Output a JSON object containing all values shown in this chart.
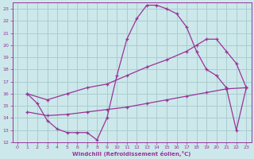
{
  "background_color": "#cce8ea",
  "line_color": "#993399",
  "grid_color": "#aaccd0",
  "xlabel": "Windchill (Refroidissement éolien,°C)",
  "xlim": [
    -0.5,
    23.5
  ],
  "ylim": [
    12,
    23.5
  ],
  "yticks": [
    12,
    13,
    14,
    15,
    16,
    17,
    18,
    19,
    20,
    21,
    22,
    23
  ],
  "xticks": [
    0,
    1,
    2,
    3,
    4,
    5,
    6,
    7,
    8,
    9,
    10,
    11,
    12,
    13,
    14,
    15,
    16,
    17,
    18,
    19,
    20,
    21,
    22,
    23
  ],
  "curve1_x": [
    1,
    2,
    3,
    4,
    5,
    6,
    7,
    8,
    9,
    10,
    11,
    12,
    13,
    14,
    15,
    16,
    17,
    18,
    19,
    20,
    21,
    22,
    23
  ],
  "curve1_y": [
    16.0,
    15.2,
    13.8,
    13.1,
    12.8,
    12.8,
    12.8,
    12.2,
    14.0,
    17.5,
    20.5,
    22.2,
    23.3,
    23.3,
    23.0,
    22.6,
    21.5,
    19.5,
    18.0,
    17.5,
    16.5,
    13.0,
    16.5
  ],
  "curve2_x": [
    1,
    3,
    5,
    7,
    9,
    11,
    13,
    15,
    17,
    18,
    19,
    20,
    21,
    22,
    23
  ],
  "curve2_y": [
    16.0,
    15.5,
    16.0,
    16.5,
    16.8,
    17.5,
    18.2,
    18.8,
    19.5,
    20.0,
    20.5,
    20.5,
    19.5,
    18.5,
    16.5
  ],
  "curve3_x": [
    1,
    3,
    5,
    7,
    9,
    11,
    13,
    15,
    17,
    19,
    21,
    23
  ],
  "curve3_y": [
    14.5,
    14.2,
    14.3,
    14.5,
    14.7,
    14.9,
    15.2,
    15.5,
    15.8,
    16.1,
    16.4,
    16.5
  ]
}
